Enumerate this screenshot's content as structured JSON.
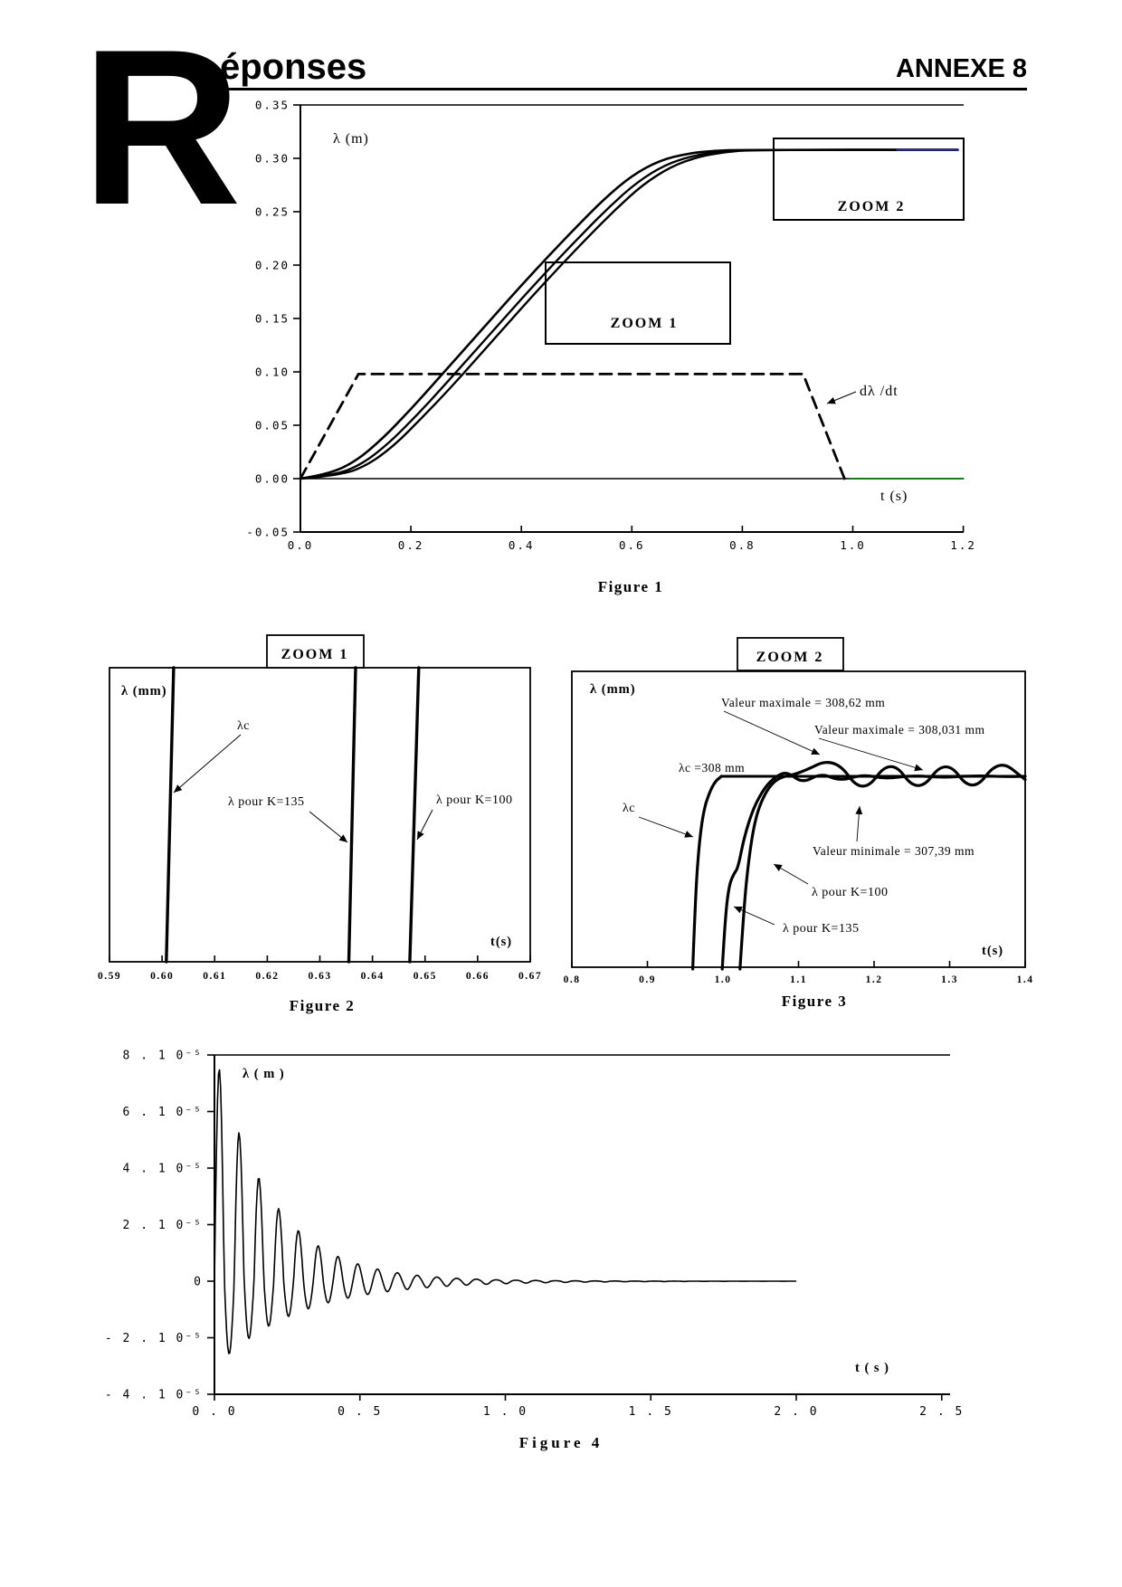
{
  "header": {
    "dropcap": "R",
    "title": "éponses",
    "annexe": "ANNEXE 8"
  },
  "colors": {
    "ink": "#000000",
    "speed_zero_tail": "#1e7a1e",
    "plateau_tail": "#2a2a99"
  },
  "chart_data": [
    {
      "id": "figure1",
      "type": "line",
      "caption": "Figure 1",
      "xlabel": "t (s)",
      "ylabel": "λ (m)",
      "x_range": [
        0.0,
        1.2
      ],
      "y_range": [
        -0.05,
        0.35
      ],
      "x_ticks": [
        0.0,
        0.2,
        0.4,
        0.6,
        0.8,
        1.0,
        1.2
      ],
      "x_tick_labels": [
        "0.0",
        "0.2",
        "0.4",
        "0.6",
        "0.8",
        "1.0",
        "1.2"
      ],
      "y_ticks": [
        0.35,
        0.3,
        0.25,
        0.2,
        0.15,
        0.1,
        0.05,
        0.0,
        -0.05
      ],
      "y_tick_labels": [
        "0.35",
        "0.30",
        "0.25",
        "0.20",
        "0.15",
        "0.10",
        "0.05",
        "0.00",
        "-0.05"
      ],
      "zoom1_label": "ZOOM 1",
      "zoom2_label": "ZOOM 2",
      "dldt_label": "dλ /dt",
      "plateau_value_m": 0.308,
      "series": [
        {
          "name": "λc",
          "color": "#000000",
          "width": 2.6,
          "smooth": true,
          "points": [
            [
              0,
              0
            ],
            [
              0.05,
              0.004
            ],
            [
              0.1,
              0.016
            ],
            [
              0.15,
              0.038
            ],
            [
              0.2,
              0.065
            ],
            [
              0.25,
              0.094
            ],
            [
              0.3,
              0.123
            ],
            [
              0.35,
              0.152
            ],
            [
              0.4,
              0.181
            ],
            [
              0.45,
              0.209
            ],
            [
              0.5,
              0.236
            ],
            [
              0.55,
              0.262
            ],
            [
              0.6,
              0.284
            ],
            [
              0.65,
              0.298
            ],
            [
              0.7,
              0.3045
            ],
            [
              0.75,
              0.3072
            ],
            [
              0.8,
              0.308
            ],
            [
              1.19,
              0.308
            ]
          ]
        },
        {
          "name": "λ pour K=135",
          "color": "#000000",
          "width": 2.4,
          "smooth": true,
          "points": [
            [
              0,
              0
            ],
            [
              0.06,
              0.003
            ],
            [
              0.11,
              0.013
            ],
            [
              0.16,
              0.033
            ],
            [
              0.21,
              0.059
            ],
            [
              0.26,
              0.087
            ],
            [
              0.31,
              0.116
            ],
            [
              0.36,
              0.145
            ],
            [
              0.41,
              0.174
            ],
            [
              0.46,
              0.202
            ],
            [
              0.51,
              0.229
            ],
            [
              0.56,
              0.255
            ],
            [
              0.61,
              0.278
            ],
            [
              0.66,
              0.294
            ],
            [
              0.71,
              0.3025
            ],
            [
              0.76,
              0.3065
            ],
            [
              0.81,
              0.308
            ],
            [
              1.19,
              0.308
            ]
          ]
        },
        {
          "name": "λ pour K=100",
          "color": "#000000",
          "width": 2.4,
          "smooth": true,
          "points": [
            [
              0,
              0
            ],
            [
              0.07,
              0.003
            ],
            [
              0.12,
              0.012
            ],
            [
              0.17,
              0.031
            ],
            [
              0.22,
              0.057
            ],
            [
              0.27,
              0.084
            ],
            [
              0.32,
              0.113
            ],
            [
              0.37,
              0.142
            ],
            [
              0.42,
              0.171
            ],
            [
              0.47,
              0.199
            ],
            [
              0.52,
              0.226
            ],
            [
              0.57,
              0.252
            ],
            [
              0.62,
              0.2755
            ],
            [
              0.67,
              0.292
            ],
            [
              0.72,
              0.3015
            ],
            [
              0.77,
              0.306
            ],
            [
              0.82,
              0.308
            ],
            [
              1.19,
              0.308
            ]
          ]
        },
        {
          "name": "dλ/dt consigne trapèze",
          "color": "#000000",
          "width": 2.8,
          "dash": "13 8",
          "points": [
            [
              0,
              0
            ],
            [
              0.105,
              0.098
            ],
            [
              0.91,
              0.098
            ],
            [
              0.985,
              0
            ]
          ]
        },
        {
          "name": "dλ/dt retour à zéro",
          "color": "#1e7a1e",
          "width": 2,
          "points": [
            [
              0.995,
              0
            ],
            [
              1.2,
              0
            ]
          ]
        },
        {
          "name": "plateau consigne position",
          "color": "#2a2a99",
          "width": 2,
          "points": [
            [
              1.08,
              0.308
            ],
            [
              1.19,
              0.308
            ]
          ]
        }
      ]
    },
    {
      "id": "figure2",
      "type": "line",
      "caption": "Figure 2",
      "title": "ZOOM 1",
      "xlabel": "t(s)",
      "ylabel": "λ (mm)",
      "x_range": [
        0.59,
        0.67
      ],
      "y_note": "fenêtre de zoom, axe vertical non gradué (0 = bas, 1 = haut de la fenêtre)",
      "x_ticks": [
        0.59,
        0.6,
        0.61,
        0.62,
        0.63,
        0.64,
        0.65,
        0.66,
        0.67
      ],
      "x_tick_labels": [
        "0.59",
        "0.60",
        "0.61",
        "0.62",
        "0.63",
        "0.64",
        "0.65",
        "0.66",
        "0.67"
      ],
      "labels": {
        "lc": "λc",
        "k135": "λ pour K=135",
        "k100": "λ pour K=100"
      },
      "crossing_times_s": {
        "lc": 0.601,
        "k135": 0.636,
        "k100": 0.648
      },
      "series": [
        {
          "name": "λc",
          "color": "#000000",
          "width": 3.4,
          "points": [
            [
              0.6008,
              0
            ],
            [
              0.6022,
              1
            ]
          ]
        },
        {
          "name": "λ pour K=135",
          "color": "#000000",
          "width": 3.4,
          "points": [
            [
              0.6355,
              0
            ],
            [
              0.6368,
              1
            ]
          ]
        },
        {
          "name": "λ pour K=100",
          "color": "#000000",
          "width": 3.4,
          "points": [
            [
              0.6471,
              0
            ],
            [
              0.6488,
              1
            ]
          ]
        }
      ]
    },
    {
      "id": "figure3",
      "type": "line",
      "caption": "Figure 3",
      "title": "ZOOM 2",
      "xlabel": "t(s)",
      "ylabel": "λ (mm)",
      "x_range": [
        0.8,
        1.4
      ],
      "y_unit": "mm",
      "x_ticks": [
        0.8,
        0.9,
        1.0,
        1.1,
        1.2,
        1.3,
        1.4
      ],
      "x_tick_labels": [
        "0.8",
        "0.9",
        "1.0",
        "1.1",
        "1.2",
        "1.3",
        "1.4"
      ],
      "annotations": {
        "vmax_k100": "Valeur maximale = 308,62 mm",
        "vmax_k135": "Valeur maximale = 308,031 mm",
        "lc_value": "λc =308 mm",
        "vmin_k100": "Valeur minimale = 307,39 mm",
        "lc": "λc",
        "k100": "λ pour K=100",
        "k135": "λ pour K=135"
      },
      "key_values_mm": {
        "lambda_c": 308,
        "max_K100": 308.62,
        "min_K100": 307.39,
        "max_K135": 308.031
      },
      "series": [
        {
          "name": "λc = 308 mm (consigne)",
          "color": "#000000",
          "width": 3,
          "points": [
            [
              0.998,
              308
            ],
            [
              1.4,
              308
            ]
          ]
        },
        {
          "name": "λc montée",
          "color": "#000000",
          "width": 3.2,
          "smooth": true,
          "points": [
            [
              0.96,
              302.0
            ],
            [
              0.9635,
              304.2
            ],
            [
              0.968,
              305.8
            ],
            [
              0.974,
              306.9
            ],
            [
              0.982,
              307.5
            ],
            [
              0.99,
              307.85
            ],
            [
              0.998,
              308
            ]
          ]
        },
        {
          "name": "λ pour K=135",
          "color": "#000000",
          "width": 3.2,
          "smooth": true,
          "points": [
            [
              0.999,
              302.0
            ],
            [
              1.003,
              303.6
            ],
            [
              1.008,
              304.6
            ],
            [
              1.014,
              304.95
            ],
            [
              1.02,
              305.15
            ],
            [
              1.028,
              306.1
            ],
            [
              1.04,
              307.0
            ],
            [
              1.055,
              307.65
            ],
            [
              1.07,
              308.0
            ],
            [
              1.085,
              308.15
            ],
            [
              1.105,
              307.78
            ],
            [
              1.13,
              308.1
            ],
            [
              1.155,
              307.85
            ],
            [
              1.185,
              308.06
            ],
            [
              1.215,
              307.92
            ],
            [
              1.25,
              308.031
            ],
            [
              1.29,
              307.96
            ],
            [
              1.33,
              308.02
            ],
            [
              1.38,
              307.99
            ],
            [
              1.4,
              308
            ]
          ]
        },
        {
          "name": "λ pour K=100",
          "color": "#000000",
          "width": 3.2,
          "smooth": true,
          "points": [
            [
              1.0225,
              302.0
            ],
            [
              1.028,
              304.0
            ],
            [
              1.034,
              305.4
            ],
            [
              1.042,
              306.6
            ],
            [
              1.052,
              307.3
            ],
            [
              1.065,
              307.8
            ],
            [
              1.08,
              308.0
            ],
            [
              1.1,
              308.08
            ],
            [
              1.148,
              308.62
            ],
            [
              1.185,
              307.39
            ],
            [
              1.222,
              308.6
            ],
            [
              1.258,
              307.42
            ],
            [
              1.295,
              308.58
            ],
            [
              1.33,
              307.45
            ],
            [
              1.365,
              308.55
            ],
            [
              1.4,
              307.9
            ]
          ]
        }
      ]
    },
    {
      "id": "figure4",
      "type": "line",
      "caption": "Figure 4",
      "xlabel": "t ( s )",
      "ylabel": "λ   ( m )",
      "x_range": [
        0.0,
        2.5
      ],
      "y_range_1e5": [
        -4,
        8
      ],
      "x_ticks": [
        0.0,
        0.5,
        1.0,
        1.5,
        2.0,
        2.5
      ],
      "x_tick_labels": [
        "0 . 0",
        "0 . 5",
        "1 . 0",
        "1 . 5",
        "2 . 0",
        "2 . 5"
      ],
      "y_ticks": [
        8,
        6,
        4,
        2,
        0,
        -2,
        -4
      ],
      "y_tick_labels": [
        "8 . 1 0⁻⁵",
        "6 . 1 0⁻⁵",
        "4 . 1 0⁻⁵",
        "2 . 1 0⁻⁵",
        "0",
        "- 2 . 1 0⁻⁵",
        "- 4 . 1 0⁻⁵"
      ],
      "series": [
        {
          "name": "écart λ oscillation amortie",
          "color": "#000000",
          "width": 1.6,
          "generator": "damped_sine",
          "unit": "1e-5 m",
          "params": {
            "T": 0.068,
            "amp_pos": 8.2,
            "tau_pos": 0.19,
            "amp_neg": 3.1,
            "tau_neg": 0.28,
            "t_end": 2.0,
            "dt": 0.0035
          },
          "summary": {
            "first_peak_1e5": 7.2,
            "first_trough_1e5": -2.7,
            "period_s": 0.068,
            "settled_by_s": 1.5,
            "data_end_s": 2.0
          }
        }
      ]
    }
  ]
}
